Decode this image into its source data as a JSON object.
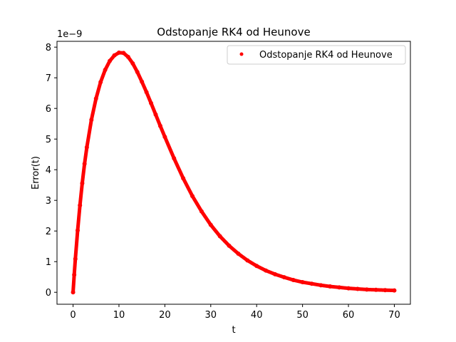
{
  "chart_data": {
    "type": "scatter",
    "title": "Odstopanje RK4 od Heunove",
    "xlabel": "t",
    "ylabel": "Error(t)",
    "y_offset_label": "1e−9",
    "xlim": [
      -3.5,
      73.5
    ],
    "ylim": [
      -0.39,
      8.19
    ],
    "xticks": [
      0,
      10,
      20,
      30,
      40,
      50,
      60,
      70
    ],
    "xtick_labels": [
      "0",
      "10",
      "20",
      "30",
      "40",
      "50",
      "60",
      "70"
    ],
    "yticks": [
      0,
      1,
      2,
      3,
      4,
      5,
      6,
      7,
      8
    ],
    "ytick_labels": [
      "0",
      "1",
      "2",
      "3",
      "4",
      "5",
      "6",
      "7",
      "8"
    ],
    "grid": false,
    "legend_position": "top-right",
    "series": [
      {
        "name": "Odstopanje RK4 od Heunove",
        "color": "#ff0000",
        "marker": "circle",
        "x": [
          0,
          0.25,
          0.5,
          1,
          1.5,
          2,
          2.5,
          3,
          4,
          5,
          6,
          7,
          8,
          9,
          10,
          11,
          12,
          13,
          14,
          15,
          16,
          17,
          18,
          19,
          20,
          22,
          24,
          26,
          28,
          30,
          32,
          34,
          36,
          38,
          40,
          42,
          44,
          46,
          48,
          50,
          52,
          54,
          56,
          58,
          60,
          62,
          64,
          66,
          68,
          70
        ],
        "y": [
          0,
          0.57,
          1.09,
          2.02,
          2.84,
          3.56,
          4.19,
          4.73,
          5.63,
          6.32,
          6.86,
          7.26,
          7.55,
          7.73,
          7.82,
          7.81,
          7.68,
          7.47,
          7.19,
          6.87,
          6.53,
          6.17,
          5.8,
          5.43,
          5.07,
          4.37,
          3.72,
          3.14,
          2.64,
          2.2,
          1.83,
          1.52,
          1.26,
          1.04,
          0.86,
          0.71,
          0.59,
          0.49,
          0.4,
          0.33,
          0.28,
          0.23,
          0.19,
          0.16,
          0.13,
          0.11,
          0.09,
          0.08,
          0.07,
          0.06
        ]
      }
    ]
  }
}
